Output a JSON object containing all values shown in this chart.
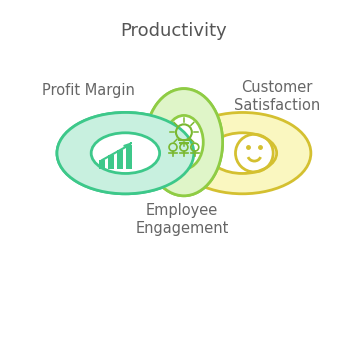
{
  "title": "Productivity",
  "labels": {
    "profit_margin": "Profit Margin",
    "customer_satisfaction": "Customer\nSatisfaction",
    "employee_engagement": "Employee\nEngagement"
  },
  "colors": {
    "left_fill": "#c8f0df",
    "left_stroke": "#3dc88a",
    "center_fill": "#dff5c8",
    "center_stroke": "#8fcc44",
    "right_fill": "#faf7c0",
    "right_stroke": "#d4c030",
    "icon_left": "#3dc88a",
    "icon_center": "#7ab830",
    "icon_right": "#d4c030",
    "text_color": "#666666",
    "title_color": "#555555",
    "bg_color": "#ffffff"
  },
  "title_fontsize": 13,
  "label_fontsize": 10.5
}
